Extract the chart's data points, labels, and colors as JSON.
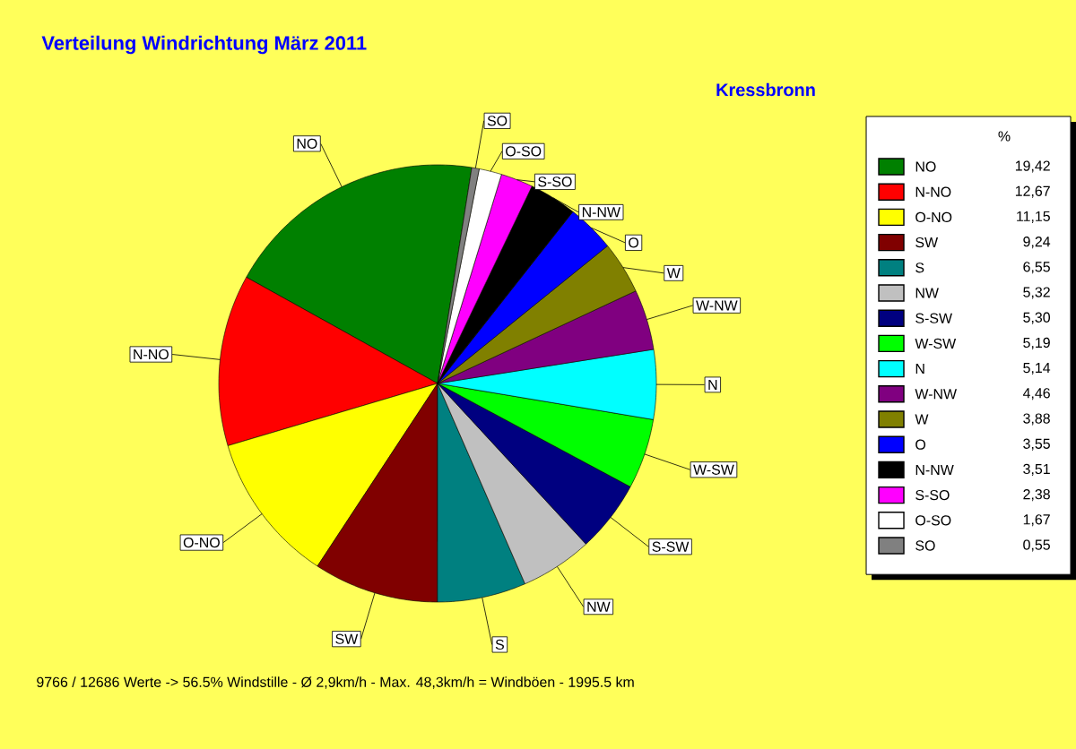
{
  "chart_data": {
    "type": "pie",
    "title": "Verteilung Windrichtung   März 2011",
    "subtitle": "Kressbronn",
    "legend_title": "%",
    "legend": "right",
    "categories": [
      "NO",
      "N-NO",
      "O-NO",
      "SW",
      "S",
      "NW",
      "S-SW",
      "W-SW",
      "N",
      "W-NW",
      "W",
      "O",
      "N-NW",
      "S-SO",
      "O-SO",
      "SO"
    ],
    "values": [
      19.42,
      12.67,
      11.15,
      9.24,
      6.55,
      5.32,
      5.3,
      5.19,
      5.14,
      4.46,
      3.88,
      3.55,
      3.51,
      2.38,
      1.67,
      0.55
    ],
    "value_labels": [
      "19,42",
      "12,67",
      "11,15",
      "9,24",
      "6,55",
      "5,32",
      "5,30",
      "5,19",
      "5,14",
      "4,46",
      "3,88",
      "3,55",
      "3,51",
      "2,38",
      "1,67",
      "0,55"
    ],
    "colors": [
      "#008000",
      "#ff0000",
      "#ffff00",
      "#800000",
      "#008080",
      "#c0c0c0",
      "#000080",
      "#00ff00",
      "#00ffff",
      "#800080",
      "#808000",
      "#0000ff",
      "#000000",
      "#ff00ff",
      "#ffffff",
      "#808080"
    ],
    "annotations": [
      "9766 / 12686 Werte  -> 56.5% Windstille   -   Ø 2,9km/h  -  Max. 48,3km/h = Windböen   -   1995.5 km"
    ]
  }
}
